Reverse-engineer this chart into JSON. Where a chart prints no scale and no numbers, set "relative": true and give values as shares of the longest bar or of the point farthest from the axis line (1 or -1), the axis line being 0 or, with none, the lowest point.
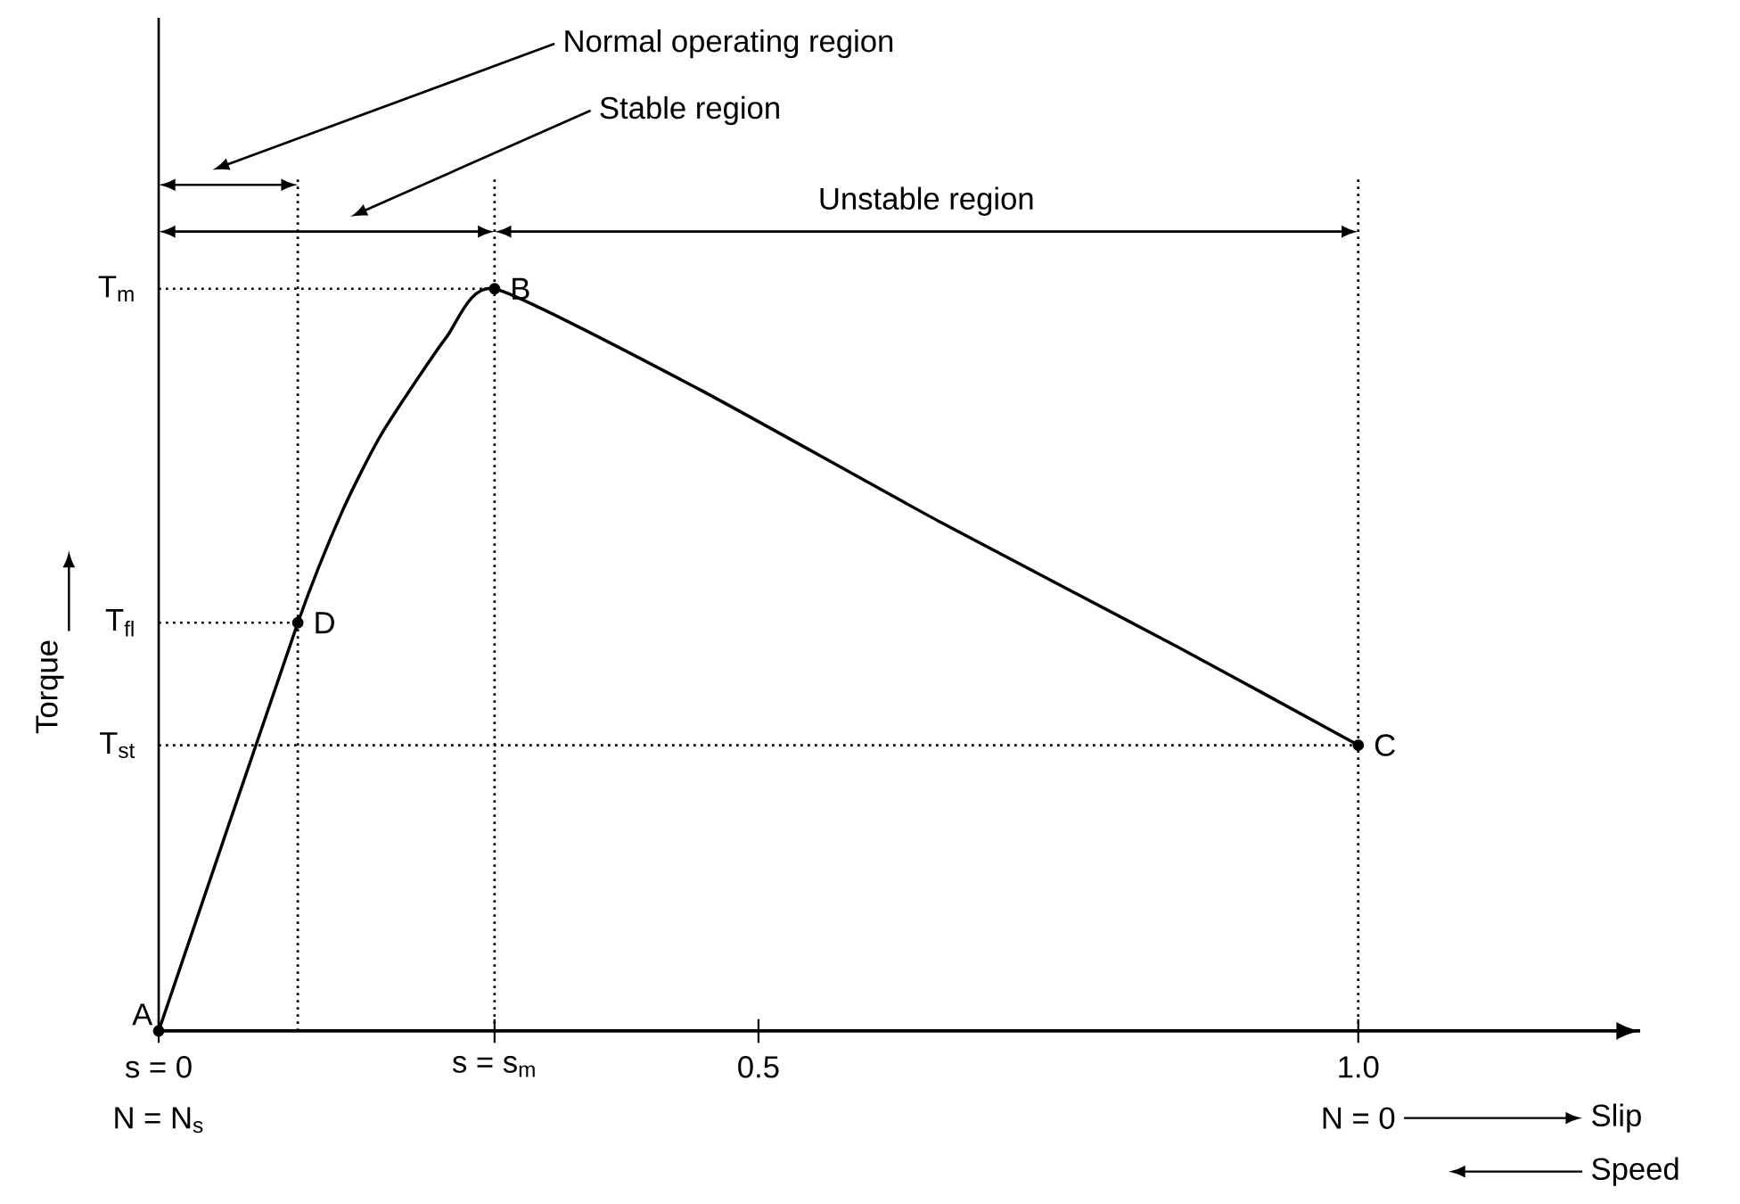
{
  "chart_data": {
    "type": "line",
    "relative": true,
    "ylabel": "Torque",
    "xlim": [
      0,
      1.235
    ],
    "xticks": [
      {
        "value": 0,
        "label": "s = 0"
      },
      {
        "value": 0.28,
        "label": "s = s$_{m}$"
      },
      0.5,
      {
        "value": 1.0,
        "label": "1.0"
      }
    ],
    "series": [
      {
        "color": "#000000",
        "x": [
          0,
          0.116,
          0.153,
          0.186,
          0.24,
          0.28,
          0.45,
          0.65,
          0.85,
          1.0
        ],
        "values": [
          0,
          0.55,
          0.7,
          0.805,
          0.935,
          1,
          0.865,
          0.687,
          0.517,
          0.385
        ]
      },
      {
        "type": "scatter",
        "marker": "circle",
        "color": "#000000",
        "x": [
          0,
          0.116,
          0.28,
          1.0
        ],
        "values": [
          0,
          0.55,
          1,
          0.385
        ]
      }
    ],
    "ref_lines": [
      {
        "axis": "y",
        "value": 1,
        "label": "T$_{m}$",
        "line_style": "dotted"
      },
      {
        "axis": "y",
        "value": 0.55,
        "label": "T$_{fl}$",
        "line_style": "dotted"
      },
      {
        "axis": "y",
        "value": 0.385,
        "label": "T$_{st}$",
        "line_style": "dotted"
      },
      {
        "axis": "x",
        "value": 0.116,
        "line_style": "dotted"
      },
      {
        "axis": "x",
        "value": 0.28,
        "line_style": "dotted"
      },
      {
        "axis": "x",
        "value": 1.0,
        "line_style": "dotted"
      }
    ],
    "annotations": [
      "Normal operating region",
      "Stable region",
      "Unstable region",
      {
        "text": "A",
        "x": 0,
        "y": 0
      },
      {
        "text": "D",
        "x": 0.116,
        "y": 0.55
      },
      {
        "text": "B",
        "x": 0.28,
        "y": 1
      },
      {
        "text": "C",
        "x": 1.0,
        "y": 0.385
      },
      "N = N$_{s}$",
      "N = 0",
      "Slip",
      "Speed"
    ]
  }
}
